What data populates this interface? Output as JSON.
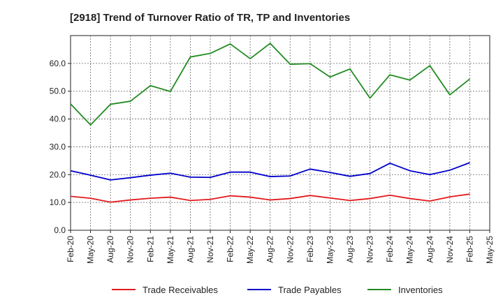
{
  "chart_data": {
    "type": "line",
    "title": "[2918]  Trend of Turnover Ratio of TR, TP and Inventories",
    "xlabel": "",
    "ylabel": "",
    "x": [
      "Feb-20",
      "May-20",
      "Aug-20",
      "Nov-20",
      "Feb-21",
      "May-21",
      "Aug-21",
      "Nov-21",
      "Feb-22",
      "May-22",
      "Aug-22",
      "Nov-22",
      "Feb-23",
      "May-23",
      "Aug-23",
      "Nov-23",
      "Feb-24",
      "May-24",
      "Aug-24",
      "Nov-24",
      "Feb-25",
      "May-25"
    ],
    "yticks": [
      "0.0",
      "10.0",
      "20.0",
      "30.0",
      "40.0",
      "50.0",
      "60.0"
    ],
    "ylim": [
      0,
      70
    ],
    "grid": true,
    "legend_position": "bottom",
    "series": [
      {
        "name": "Trade Receivables",
        "color": "#e31a1c",
        "values": [
          12.2,
          11.5,
          10.1,
          10.9,
          11.5,
          11.9,
          10.7,
          11.1,
          12.4,
          11.9,
          10.9,
          11.4,
          12.5,
          11.6,
          10.7,
          11.4,
          12.6,
          11.4,
          10.5,
          12.0,
          13.0,
          null
        ]
      },
      {
        "name": "Trade Payables",
        "color": "#0000cc",
        "values": [
          21.4,
          19.8,
          18.1,
          18.9,
          19.8,
          20.5,
          19.1,
          19.0,
          20.9,
          20.9,
          19.3,
          19.5,
          22.0,
          20.8,
          19.4,
          20.4,
          24.1,
          21.4,
          20.0,
          21.6,
          24.3,
          null
        ]
      },
      {
        "name": "Inventories",
        "color": "#228b22",
        "values": [
          45.4,
          37.9,
          45.3,
          46.4,
          52.0,
          49.9,
          62.3,
          63.6,
          67.0,
          61.7,
          67.2,
          59.7,
          59.9,
          55.1,
          58.0,
          47.5,
          55.9,
          54.0,
          59.2,
          48.7,
          54.4,
          null
        ]
      }
    ]
  }
}
